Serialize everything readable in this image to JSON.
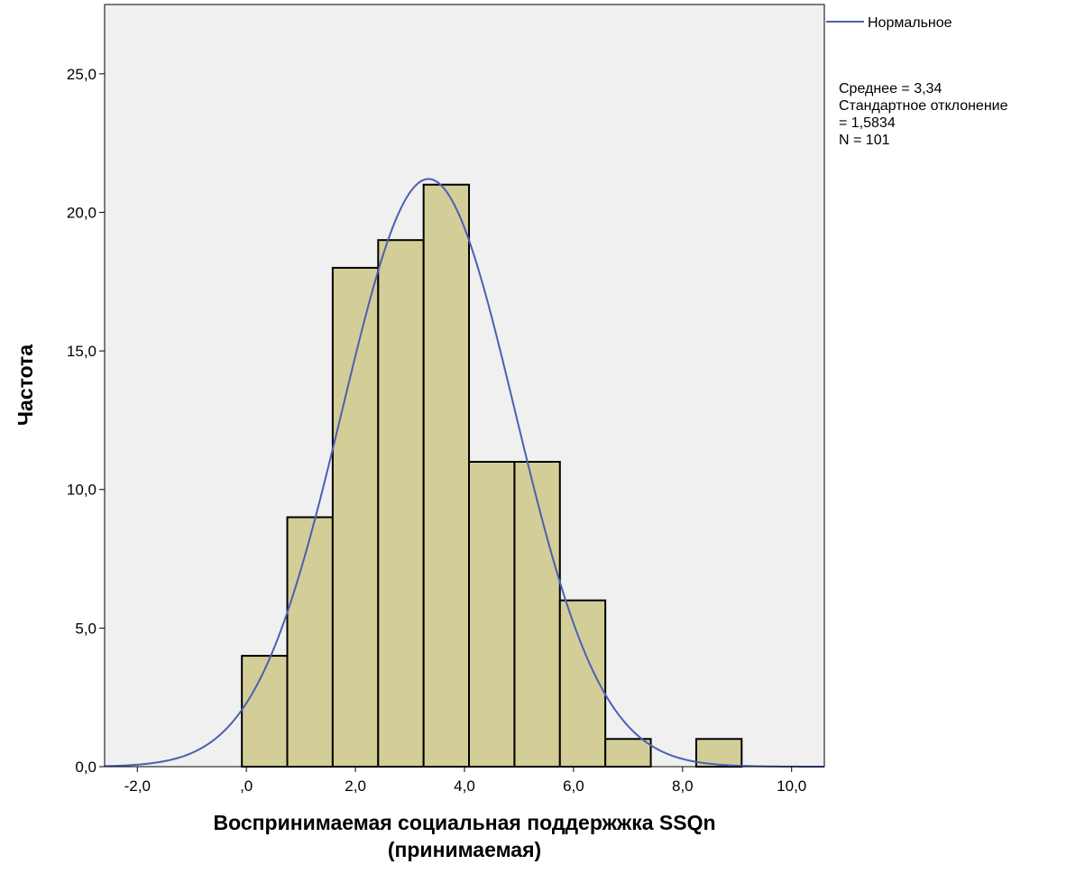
{
  "chart_data": {
    "type": "bar",
    "subtype": "histogram",
    "xlabel_lines": [
      "Воспринимаемая социальная поддержжка SSQn",
      "(принимаемая)"
    ],
    "ylabel": "Частота",
    "xlim": [
      -2.6,
      10.6
    ],
    "ylim": [
      0,
      27.5
    ],
    "x_ticks": [
      -2,
      0,
      2,
      4,
      6,
      8,
      10
    ],
    "x_tick_labels": [
      "-2,0",
      ",0",
      "2,0",
      "4,0",
      "6,0",
      "8,0",
      "10,0"
    ],
    "y_ticks": [
      0,
      5,
      10,
      15,
      20,
      25
    ],
    "y_tick_labels": [
      "0,0",
      "5,0",
      "10,0",
      "15,0",
      "20,0",
      "25,0"
    ],
    "bins": [
      {
        "start": -0.083,
        "end": 0.75,
        "count": 4
      },
      {
        "start": 0.75,
        "end": 1.583,
        "count": 9
      },
      {
        "start": 1.583,
        "end": 2.417,
        "count": 18
      },
      {
        "start": 2.417,
        "end": 3.25,
        "count": 19
      },
      {
        "start": 3.25,
        "end": 4.083,
        "count": 21
      },
      {
        "start": 4.083,
        "end": 4.917,
        "count": 11
      },
      {
        "start": 4.917,
        "end": 5.75,
        "count": 11
      },
      {
        "start": 5.75,
        "end": 6.583,
        "count": 6
      },
      {
        "start": 6.583,
        "end": 7.417,
        "count": 1
      },
      {
        "start": 7.417,
        "end": 8.25,
        "count": 0
      },
      {
        "start": 8.25,
        "end": 9.083,
        "count": 1
      }
    ],
    "normal_curve": {
      "name": "Нормальное",
      "mean": 3.34,
      "sd": 1.5834,
      "n": 101,
      "bin_width": 0.8333
    },
    "stats_lines": [
      "Среднее = 3,34",
      "Стандартное отклонение",
      "= 1,5834",
      "N = 101"
    ],
    "grid": false,
    "legend_position": "right",
    "colors": {
      "plot_background": "#f0f0f0",
      "bar_fill": "#d3ce97",
      "bar_stroke": "#000000",
      "curve": "#4b5fb5"
    }
  }
}
